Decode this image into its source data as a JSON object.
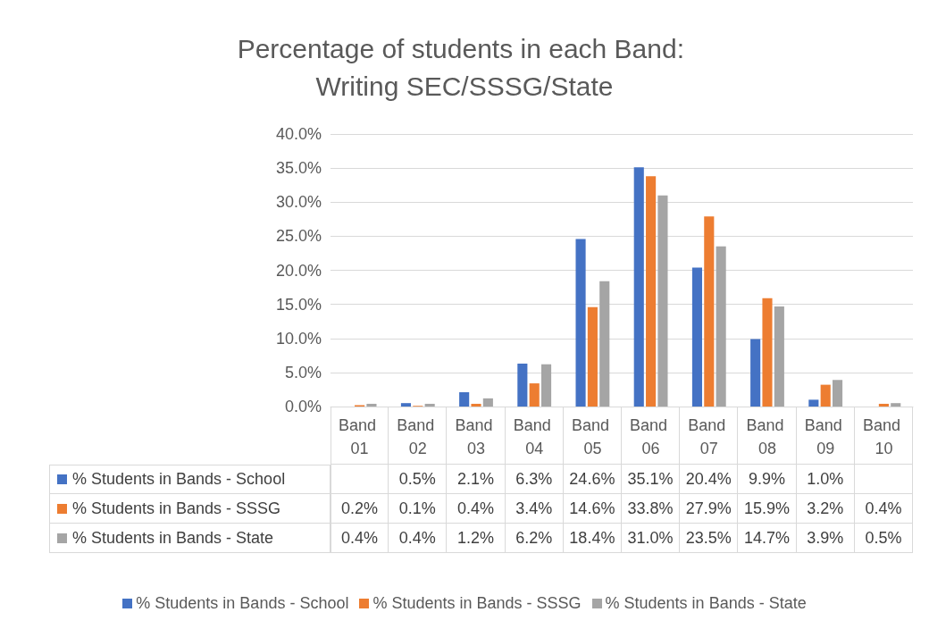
{
  "chart_data": {
    "type": "bar",
    "title": "Percentage of students in each Band: Writing SEC/SSSG/State",
    "categories": [
      "Band 01",
      "Band 02",
      "Band 03",
      "Band 04",
      "Band 05",
      "Band 06",
      "Band 07",
      "Band 08",
      "Band 09",
      "Band 10"
    ],
    "series": [
      {
        "name": "% Students in Bands - School",
        "color": "#4472c4",
        "values": [
          null,
          0.5,
          2.1,
          6.3,
          24.6,
          35.1,
          20.4,
          9.9,
          1.0,
          null
        ],
        "value_labels": [
          null,
          "0.5%",
          "2.1%",
          "6.3%",
          "24.6%",
          "35.1%",
          "20.4%",
          "9.9%",
          "1.0%",
          null
        ]
      },
      {
        "name": "% Students in Bands - SSSG",
        "color": "#ed7d31",
        "values": [
          0.2,
          0.1,
          0.4,
          3.4,
          14.6,
          33.8,
          27.9,
          15.9,
          3.2,
          0.4
        ],
        "value_labels": [
          "0.2%",
          "0.1%",
          "0.4%",
          "3.4%",
          "14.6%",
          "33.8%",
          "27.9%",
          "15.9%",
          "3.2%",
          "0.4%"
        ]
      },
      {
        "name": "% Students in Bands - State",
        "color": "#a5a5a5",
        "values": [
          0.4,
          0.4,
          1.2,
          6.2,
          18.4,
          31.0,
          23.5,
          14.7,
          3.9,
          0.5
        ],
        "value_labels": [
          "0.4%",
          "0.4%",
          "1.2%",
          "6.2%",
          "18.4%",
          "31.0%",
          "23.5%",
          "14.7%",
          "3.9%",
          "0.5%"
        ]
      }
    ],
    "ylim": [
      0,
      40
    ],
    "yticks": [
      {
        "value": 0,
        "label": "0.0%"
      },
      {
        "value": 5,
        "label": "5.0%"
      },
      {
        "value": 10,
        "label": "10.0%"
      },
      {
        "value": 15,
        "label": "15.0%"
      },
      {
        "value": 20,
        "label": "20.0%"
      },
      {
        "value": 25,
        "label": "25.0%"
      },
      {
        "value": 30,
        "label": "30.0%"
      },
      {
        "value": 35,
        "label": "35.0%"
      },
      {
        "value": 40,
        "label": "40.0%"
      }
    ],
    "grid": "y",
    "legend": "bottom"
  }
}
